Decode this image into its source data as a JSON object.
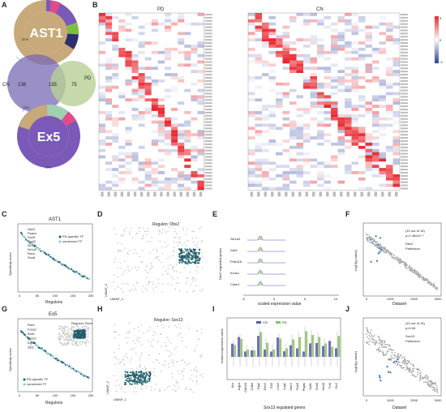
{
  "panels": {
    "A": "A",
    "B": "B",
    "C": "C",
    "D": "D",
    "E": "E",
    "F": "F",
    "G": "G",
    "H": "H",
    "I": "I",
    "J": "J"
  },
  "panelA": {
    "donut_top_label": "AST1",
    "donut_top_pct_main": "87%",
    "venn_left": "CN",
    "venn_right": "PD",
    "venn_only_left": "138",
    "venn_both": "155",
    "venn_only_right": "75",
    "donut_bottom_label": "Ex5",
    "donut_bottom_pct_top": "12%",
    "donut_bottom_pct_main": "70%",
    "colors": {
      "tan": "#c8a97a",
      "venn_left": "#7a6ab4",
      "venn_right": "#b8cf95",
      "purple": "#7b59b8",
      "green": "#7fbf3f"
    }
  },
  "panelB": {
    "pd_title": "PD",
    "cn_title": "CN",
    "legend_max": "3",
    "legend_mid": "0",
    "legend_min": "-3",
    "colors": {
      "high": "#e8252d",
      "low": "#2c3e9a"
    }
  },
  "panelC": {
    "title": "AST1",
    "xlabel": "Regulons",
    "ylabel": "Specificity score",
    "legend_pd": "PD-specific TF",
    "legend_cons": "conserved TF",
    "labels": [
      "Dbx2",
      "Ppara",
      "Sox9",
      "Foxj3",
      "Nr1d1",
      "Nr1d2",
      "Rora",
      "Sox8"
    ],
    "xticks": [
      "0",
      "50",
      "100",
      "150",
      "200"
    ]
  },
  "panelD": {
    "regulon": "Regulon: Dbx2",
    "axis": "UMAP_1",
    "axis2": "UMAP_2"
  },
  "panelE": {
    "ylabel": "Dbx2 regulated genes",
    "xlabel": "scaled expression value",
    "genes": [
      "Slc1a2",
      "Gal3",
      "Prdm16",
      "Kcns1",
      "Cdsh1"
    ],
    "xticks": [
      "-5",
      "0",
      "5",
      "10"
    ]
  },
  "panelF": {
    "note1": "(10 out of 16)",
    "note2": "p=1.48x10⁻⁶",
    "note3": "Dbx2",
    "note4": "Parkinson",
    "xlabel": "Dataset",
    "ylabel": "-log10(p-value)",
    "xticks": [
      "0",
      "1000",
      "2000",
      "3000"
    ]
  },
  "panelG": {
    "title": "Ex5",
    "inset": "Regulon: Rorb",
    "xlabel": "Regulons",
    "ylabel": "Specificity score",
    "legend_pd": "PD-specific TF",
    "legend_cons": "conserved TF",
    "labels": [
      "Rorb",
      "Foxp1",
      "Rxrb",
      "Meis2",
      "Egr1",
      "Zfp1"
    ],
    "xticks": [
      "0",
      "50",
      "100",
      "150",
      "200"
    ]
  },
  "panelH": {
    "regulon": "Regulon: Sox13",
    "axis": "UMAP_1",
    "axis2": "UMAP_2"
  },
  "panelI": {
    "ylabel": "scaled expression value",
    "xlabel": "Sox13 regulated genes",
    "legend_cn": "CN",
    "legend_pd": "PD",
    "genes": [
      "Ahr",
      "Aqp4",
      "Cdh20",
      "Cdkn",
      "Dlg2",
      "Ezh2",
      "Gli3",
      "Lhx2",
      "Lrig1",
      "Ntsr2",
      "Pax6",
      "Ptgds",
      "Sall1",
      "Sox9",
      "Srebf",
      "Tcf4",
      "Zic2"
    ],
    "colors": {
      "cn": "#5a56b8",
      "pd": "#8fbf6a"
    }
  },
  "panelJ": {
    "note1": "(10 out of 19)",
    "note2": "p=0.06",
    "note3": "Sox13",
    "note4": "Parkinson",
    "xlabel": "Dataset",
    "ylabel": "-log10(p-value)",
    "xticks": [
      "0",
      "1000",
      "2000",
      "3000"
    ]
  }
}
